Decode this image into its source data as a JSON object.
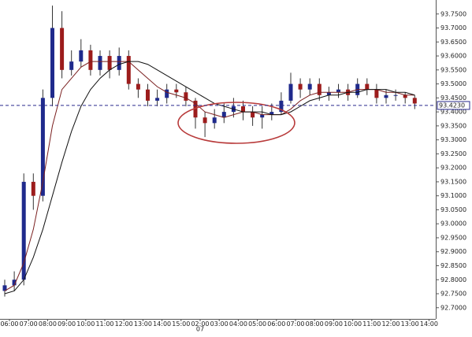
{
  "chart_data": {
    "type": "candlestick",
    "x_labels": [
      "06:00",
      "07:00",
      "08:00",
      "09:00",
      "10:00",
      "11:00",
      "12:00",
      "13:00",
      "14:00",
      "15:00",
      "02:00",
      "03:00",
      "04:00",
      "05:00",
      "06:00",
      "07:00",
      "08:00",
      "09:00",
      "10:00",
      "11:00",
      "12:00",
      "13:00",
      "14:00"
    ],
    "date_label": "07",
    "open": [
      92.76,
      92.78,
      92.8,
      93.15,
      93.1,
      93.45,
      93.7,
      93.55,
      93.58,
      93.62,
      93.55,
      93.6,
      93.55,
      93.6,
      93.5,
      93.48,
      93.44,
      93.45,
      93.48,
      93.47,
      93.44,
      93.38,
      93.36,
      93.38,
      93.4,
      93.42,
      93.4,
      93.38,
      93.39,
      93.4,
      93.44,
      93.5,
      93.48,
      93.5,
      93.46,
      93.47,
      93.48,
      93.46,
      93.5,
      93.48,
      93.45,
      93.46,
      93.46,
      93.45
    ],
    "high": [
      92.8,
      92.83,
      93.18,
      93.18,
      93.48,
      93.78,
      93.76,
      93.62,
      93.66,
      93.64,
      93.62,
      93.62,
      93.63,
      93.62,
      93.52,
      93.5,
      93.48,
      93.5,
      93.5,
      93.49,
      93.45,
      93.4,
      93.41,
      93.43,
      93.45,
      93.44,
      93.42,
      93.42,
      93.43,
      93.47,
      93.54,
      93.52,
      93.52,
      93.52,
      93.49,
      93.5,
      93.5,
      93.52,
      93.52,
      93.5,
      93.48,
      93.48,
      93.47,
      93.46
    ],
    "low": [
      92.74,
      92.76,
      92.78,
      93.05,
      93.08,
      93.42,
      93.52,
      93.53,
      93.56,
      93.53,
      93.53,
      93.52,
      93.53,
      93.48,
      93.45,
      93.42,
      93.42,
      93.43,
      93.45,
      93.42,
      93.34,
      93.31,
      93.34,
      93.36,
      93.38,
      93.37,
      93.35,
      93.34,
      93.37,
      93.39,
      93.43,
      93.45,
      93.46,
      93.44,
      93.44,
      93.45,
      93.44,
      93.45,
      93.46,
      93.43,
      93.43,
      93.44,
      93.43,
      93.41
    ],
    "close": [
      92.78,
      92.8,
      93.15,
      93.1,
      93.45,
      93.7,
      93.55,
      93.58,
      93.62,
      93.55,
      93.6,
      93.55,
      93.6,
      93.5,
      93.48,
      93.44,
      93.45,
      93.48,
      93.47,
      93.44,
      93.38,
      93.36,
      93.38,
      93.4,
      93.42,
      93.4,
      93.38,
      93.39,
      93.4,
      93.44,
      93.5,
      93.48,
      93.5,
      93.46,
      93.47,
      93.48,
      93.46,
      93.5,
      93.48,
      93.45,
      93.46,
      93.46,
      93.45,
      93.43
    ],
    "up_color": "#1f2a8c",
    "down_color": "#9c1c1c",
    "lines": [
      {
        "color": "#7a1f1f",
        "values": [
          92.76,
          92.78,
          92.86,
          92.98,
          93.15,
          93.35,
          93.48,
          93.52,
          93.56,
          93.58,
          93.58,
          93.58,
          93.58,
          93.58,
          93.55,
          93.52,
          93.49,
          93.47,
          93.46,
          93.45,
          93.43,
          93.4,
          93.39,
          93.38,
          93.39,
          93.4,
          93.4,
          93.39,
          93.39,
          93.39,
          93.41,
          93.44,
          93.46,
          93.47,
          93.47,
          93.47,
          93.47,
          93.48,
          93.48,
          93.48,
          93.47,
          93.47,
          93.46,
          93.46
        ]
      },
      {
        "color": "#111111",
        "values": [
          92.75,
          92.76,
          92.8,
          92.88,
          92.98,
          93.1,
          93.22,
          93.33,
          93.42,
          93.48,
          93.52,
          93.55,
          93.57,
          93.58,
          93.58,
          93.57,
          93.55,
          93.53,
          93.51,
          93.49,
          93.47,
          93.45,
          93.43,
          93.42,
          93.41,
          93.4,
          93.4,
          93.4,
          93.39,
          93.39,
          93.4,
          93.42,
          93.44,
          93.45,
          93.46,
          93.46,
          93.47,
          93.47,
          93.48,
          93.48,
          93.48,
          93.47,
          93.47,
          93.46
        ]
      }
    ],
    "current_price": {
      "value": 93.423,
      "label": "93.4230"
    },
    "ylim": [
      92.66,
      93.8
    ],
    "yticks": [
      {
        "value": 92.7,
        "label": "92.7000"
      },
      {
        "value": 92.75,
        "label": "92.7500"
      },
      {
        "value": 92.8,
        "label": "92.8000"
      },
      {
        "value": 92.85,
        "label": "92.8500"
      },
      {
        "value": 92.9,
        "label": "92.9000"
      },
      {
        "value": 92.95,
        "label": "92.9500"
      },
      {
        "value": 93.0,
        "label": "93.0000"
      },
      {
        "value": 93.05,
        "label": "93.0500"
      },
      {
        "value": 93.1,
        "label": "93.1000"
      },
      {
        "value": 93.15,
        "label": "93.1500"
      },
      {
        "value": 93.2,
        "label": "93.2000"
      },
      {
        "value": 93.25,
        "label": "93.2500"
      },
      {
        "value": 93.3,
        "label": "93.3000"
      },
      {
        "value": 93.35,
        "label": "93.3500"
      },
      {
        "value": 93.4,
        "label": "93.4000"
      },
      {
        "value": 93.45,
        "label": "93.4500"
      },
      {
        "value": 93.5,
        "label": "93.5000"
      },
      {
        "value": 93.55,
        "label": "93.5500"
      },
      {
        "value": 93.6,
        "label": "93.6000"
      },
      {
        "value": 93.65,
        "label": "93.6500"
      },
      {
        "value": 93.7,
        "label": "93.7000"
      },
      {
        "value": 93.75,
        "label": "93.7500"
      }
    ]
  }
}
